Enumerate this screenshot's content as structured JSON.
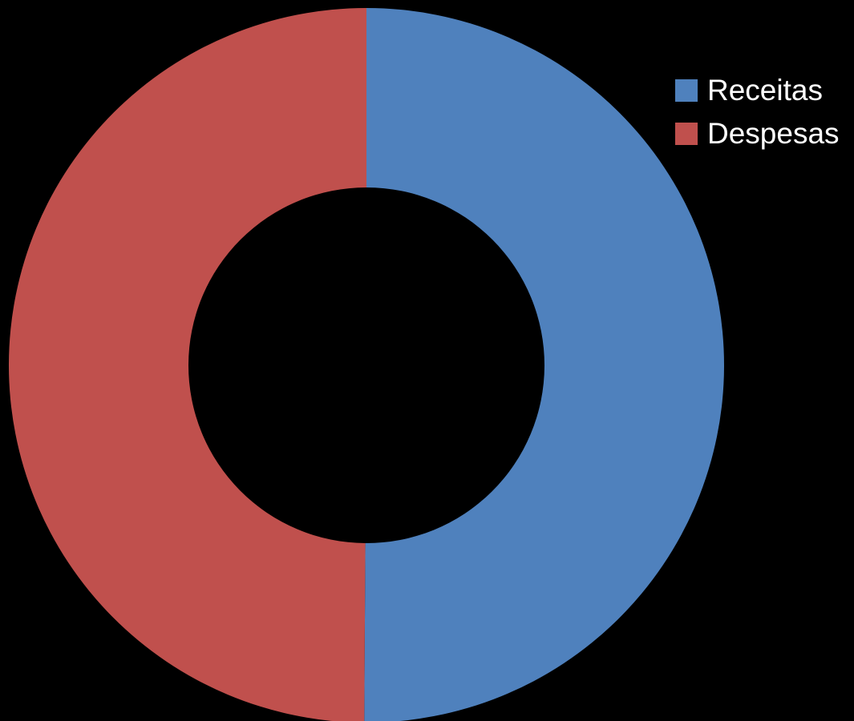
{
  "chart_data": {
    "type": "pie",
    "subtype": "donut",
    "categories": [
      "Receitas",
      "Despesas"
    ],
    "values": [
      50.1,
      49.9
    ],
    "colors": [
      "#4f81bd",
      "#c0504d"
    ],
    "background": "#000000",
    "title": "",
    "legend": {
      "position": "top-right",
      "items": [
        {
          "label": "Receitas",
          "color": "#4f81bd"
        },
        {
          "label": "Despesas",
          "color": "#c0504d"
        }
      ]
    }
  }
}
